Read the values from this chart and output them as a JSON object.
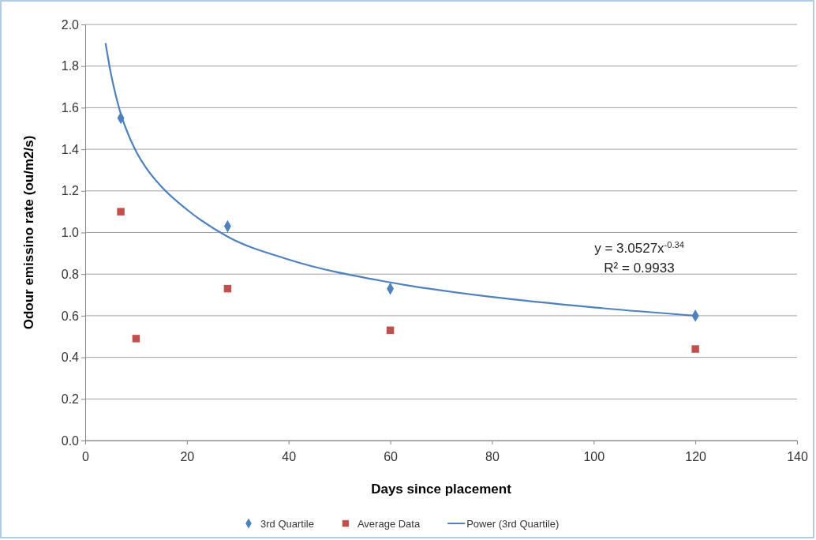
{
  "chart_data": {
    "type": "scatter",
    "xlabel": "Days since placement",
    "ylabel": "Odour emissino rate (ou/m2/s)",
    "xlim": [
      0,
      140
    ],
    "xticks": [
      0,
      20,
      40,
      60,
      80,
      100,
      120,
      140
    ],
    "ylim": [
      0,
      2
    ],
    "yticks": [
      {
        "value": 0,
        "label": "0.0"
      },
      {
        "value": 0.2,
        "label": "0.2"
      },
      {
        "value": 0.4,
        "label": "0.4"
      },
      {
        "value": 0.6,
        "label": "0.6"
      },
      {
        "value": 0.8,
        "label": "0.8"
      },
      {
        "value": 1,
        "label": "1.0"
      },
      {
        "value": 1.2,
        "label": "1.2"
      },
      {
        "value": 1.4,
        "label": "1.4"
      },
      {
        "value": 1.6,
        "label": "1.6"
      },
      {
        "value": 1.8,
        "label": "1.8"
      },
      {
        "value": 2,
        "label": "2.0"
      }
    ],
    "grid": "y",
    "legend": "bottom",
    "annotations": [
      "y = 3.0527x$^{-0.34}$",
      "R² = 0.9933"
    ],
    "series": [
      {
        "name": "3rd Quartile",
        "marker": "diamond",
        "color": "#4f81bd",
        "x": [
          7,
          28,
          60,
          120
        ],
        "values": [
          1.55,
          1.03,
          0.73,
          0.6
        ]
      },
      {
        "name": "Average Data",
        "marker": "square",
        "color": "#c0504d",
        "x": [
          7,
          10,
          28,
          60,
          120
        ],
        "values": [
          1.1,
          0.49,
          0.73,
          0.53,
          0.44
        ]
      },
      {
        "name": "Power (3rd Quartile)",
        "type": "line",
        "marker": "none",
        "line_style": "solid",
        "color": "#4f81bd",
        "x": [
          4,
          5,
          6,
          7,
          8,
          10,
          12,
          15,
          20,
          28,
          40,
          60,
          80,
          100,
          120
        ],
        "values": [
          1.91,
          1.77,
          1.66,
          1.57,
          1.5,
          1.39,
          1.31,
          1.22,
          1.11,
          0.98,
          0.87,
          0.76,
          0.69,
          0.64,
          0.6
        ]
      }
    ]
  }
}
